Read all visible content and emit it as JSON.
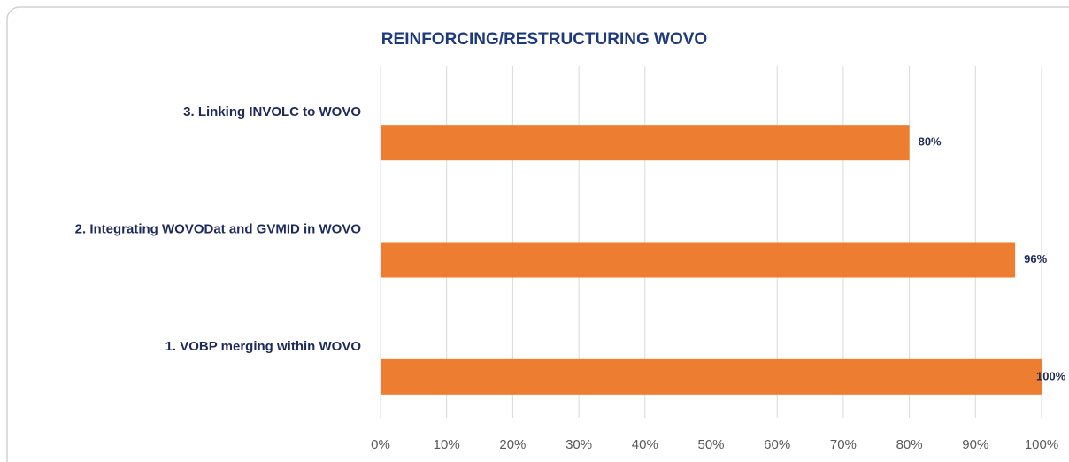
{
  "chart_data": {
    "type": "barh",
    "title": "REINFORCING/RESTRUCTURING WOVO",
    "categories": [
      "3. Linking INVOLC to WOVO",
      "2. Integrating WOVODat and GVMID in WOVO",
      "1. VOBP merging within WOVO"
    ],
    "values": [
      80,
      96,
      100
    ],
    "value_labels": [
      "80%",
      "96%",
      "100%"
    ],
    "color": "#ed7d31",
    "xlim": [
      0,
      100
    ],
    "xticks": [
      {
        "value": 0,
        "label": "0%"
      },
      {
        "value": 10,
        "label": "10%"
      },
      {
        "value": 20,
        "label": "20%"
      },
      {
        "value": 30,
        "label": "30%"
      },
      {
        "value": 40,
        "label": "40%"
      },
      {
        "value": 50,
        "label": "50%"
      },
      {
        "value": 60,
        "label": "60%"
      },
      {
        "value": 70,
        "label": "70%"
      },
      {
        "value": 80,
        "label": "80%"
      },
      {
        "value": 90,
        "label": "90%"
      },
      {
        "value": 100,
        "label": "100%"
      }
    ],
    "grid": true
  }
}
